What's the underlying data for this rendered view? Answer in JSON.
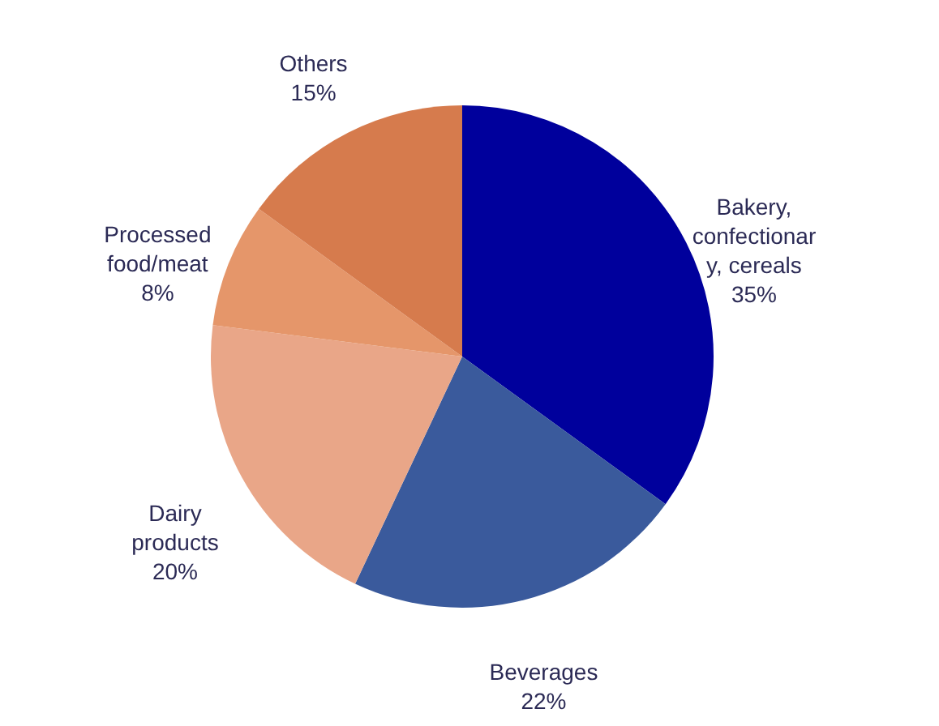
{
  "chart_data": {
    "type": "pie",
    "categories": [
      "Bakery, confectionary, cereals",
      "Beverages",
      "Dairy products",
      "Processed food/meat",
      "Others"
    ],
    "values": [
      35,
      22,
      20,
      8,
      15
    ],
    "colors": [
      "#00009c",
      "#3a5a9c",
      "#e9a688",
      "#e5966a",
      "#d67b4d"
    ],
    "value_labels": [
      "35%",
      "22%",
      "20%",
      "8%",
      "15%"
    ]
  }
}
